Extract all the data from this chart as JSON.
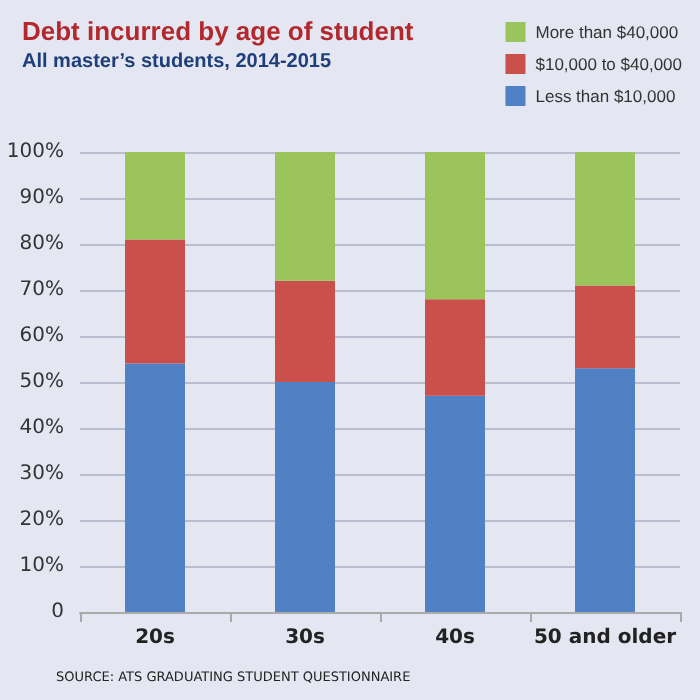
{
  "chart_data": {
    "type": "bar",
    "title": "Debt incurred by age of student",
    "subtitle": "All master’s students, 2014-2015",
    "categories": [
      "20s",
      "30s",
      "40s",
      "50 and older"
    ],
    "stacked": true,
    "series": [
      {
        "name": "Less than $10,000",
        "color": "#4f81c4",
        "values": [
          54,
          50,
          47,
          53
        ]
      },
      {
        "name": "$10,000 to $40,000",
        "color": "#c9504b",
        "values": [
          27,
          22,
          21,
          18
        ]
      },
      {
        "name": "More than $40,000",
        "color": "#9bc45a",
        "values": [
          19,
          28,
          32,
          29
        ]
      }
    ],
    "ylim": [
      0,
      100
    ],
    "yticks": [
      {
        "value": 0,
        "label": "0"
      },
      {
        "value": 10,
        "label": "10%"
      },
      {
        "value": 20,
        "label": "20%"
      },
      {
        "value": 30,
        "label": "30%"
      },
      {
        "value": 40,
        "label": "40%"
      },
      {
        "value": 50,
        "label": "50%"
      },
      {
        "value": 60,
        "label": "60%"
      },
      {
        "value": 70,
        "label": "70%"
      },
      {
        "value": 80,
        "label": "80%"
      },
      {
        "value": 90,
        "label": "90%"
      },
      {
        "value": 100,
        "label": "100%"
      }
    ],
    "grid": "y",
    "legend": "top right",
    "annotations": [
      "SOURCE: ATS GRADUATING STUDENT QUESTIONNAIRE"
    ]
  }
}
